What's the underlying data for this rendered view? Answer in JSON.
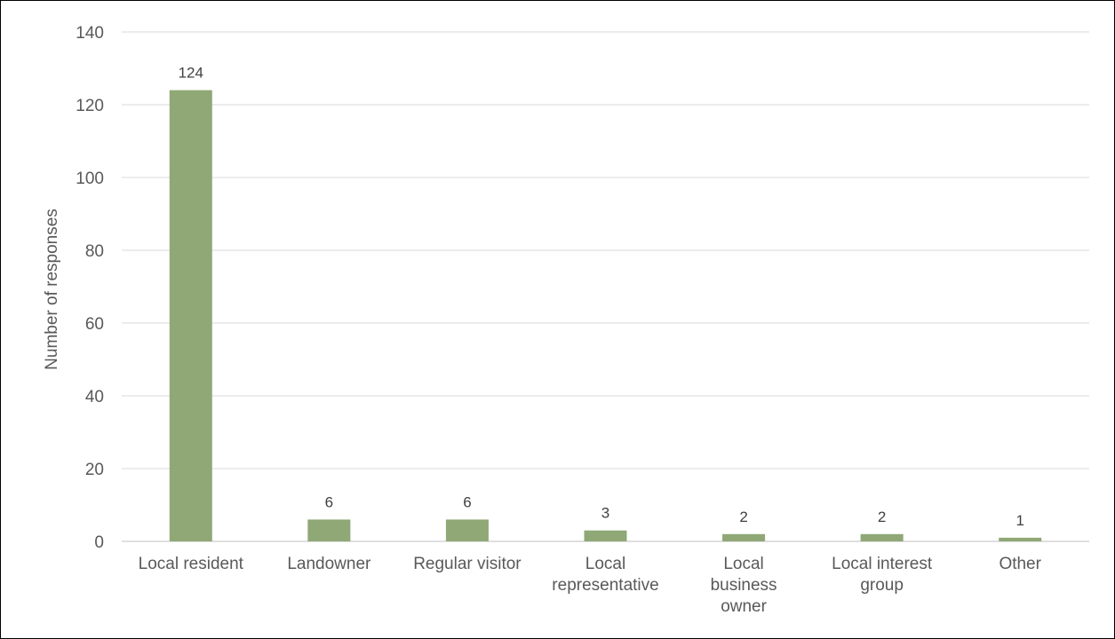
{
  "chart_data": {
    "type": "bar",
    "title": "",
    "xlabel": "",
    "ylabel": "Number of responses",
    "ylim": [
      0,
      140
    ],
    "ytick_step": 20,
    "grid": true,
    "legend": "none",
    "bar_color": "#8fa876",
    "gridline_color": "#d9d9d9",
    "categories": [
      "Local resident",
      "Landowner",
      "Regular visitor",
      "Local representative",
      "Local business owner",
      "Local interest group",
      "Other"
    ],
    "category_lines": [
      [
        "Local resident"
      ],
      [
        "Landowner"
      ],
      [
        "Regular visitor"
      ],
      [
        "Local",
        "representative"
      ],
      [
        "Local",
        "business",
        "owner"
      ],
      [
        "Local interest",
        "group"
      ],
      [
        "Other"
      ]
    ],
    "values": [
      124,
      6,
      6,
      3,
      2,
      2,
      1
    ]
  }
}
